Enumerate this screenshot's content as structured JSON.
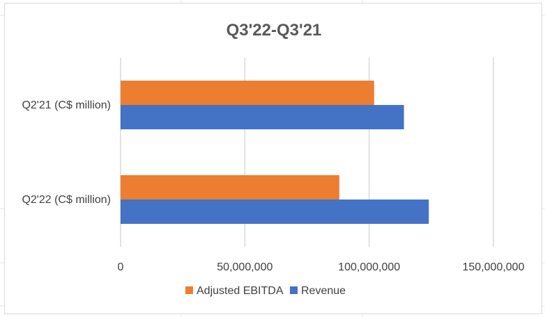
{
  "chart_data": {
    "type": "bar",
    "orientation": "horizontal",
    "title": "Q3'22-Q3'21",
    "categories": [
      "Q2'21 (C$ million)",
      "Q2'22 (C$ million)"
    ],
    "series": [
      {
        "name": "Adjusted EBITDA",
        "color": "#ED7D31",
        "values": [
          102000000,
          88000000
        ]
      },
      {
        "name": "Revenue",
        "color": "#4472C4",
        "values": [
          114000000,
          124000000
        ]
      }
    ],
    "xlim": [
      0,
      150000000
    ],
    "xticks": [
      0,
      50000000,
      100000000,
      150000000
    ],
    "xtick_labels": [
      "0",
      "50,000,000",
      "100,000,000",
      "150,000,000"
    ],
    "grid": "vertical",
    "legend": "bottom"
  }
}
